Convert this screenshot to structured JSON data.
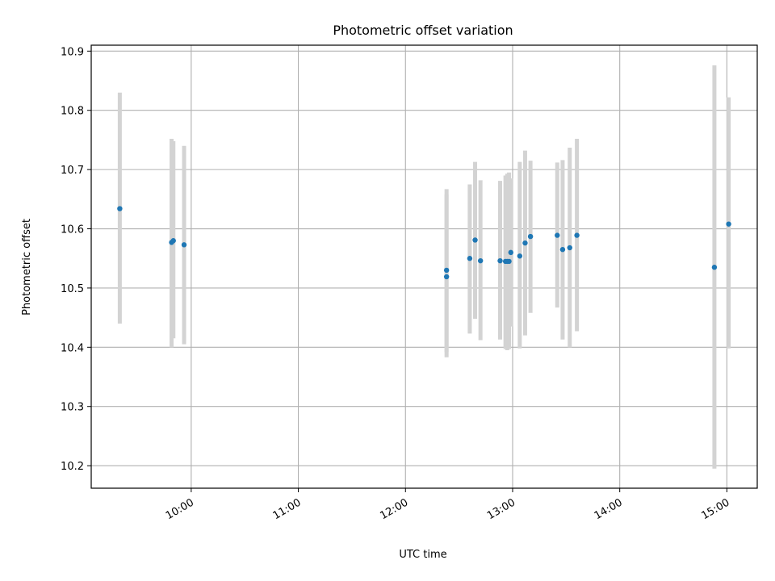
{
  "chart_data": {
    "type": "scatter",
    "title": "Photometric offset variation",
    "xlabel": "UTC time",
    "ylabel": "Photometric offset",
    "x_unit": "UTC time (HH:MM)",
    "xlim": [
      "09:04",
      "15:17"
    ],
    "ylim": [
      10.162,
      10.91
    ],
    "x_ticks": [
      "10:00",
      "11:00",
      "12:00",
      "13:00",
      "14:00",
      "15:00"
    ],
    "y_ticks": [
      "10.2",
      "10.3",
      "10.4",
      "10.5",
      "10.6",
      "10.7",
      "10.8",
      "10.9"
    ],
    "grid": true,
    "colors": {
      "point": "#1f77b4",
      "error_bar": "#d3d3d3"
    },
    "points": [
      {
        "x": "09:20",
        "y": 10.634,
        "err_low": 10.44,
        "err_high": 10.83
      },
      {
        "x": "09:49",
        "y": 10.577,
        "err_low": 10.4,
        "err_high": 10.752
      },
      {
        "x": "09:50",
        "y": 10.58,
        "err_low": 10.415,
        "err_high": 10.748
      },
      {
        "x": "09:56",
        "y": 10.573,
        "err_low": 10.405,
        "err_high": 10.74
      },
      {
        "x": "12:23",
        "y": 10.519,
        "err_low": 10.383,
        "err_high": 10.658
      },
      {
        "x": "12:23",
        "y": 10.53,
        "err_low": 10.392,
        "err_high": 10.667
      },
      {
        "x": "12:36",
        "y": 10.55,
        "err_low": 10.423,
        "err_high": 10.675
      },
      {
        "x": "12:39",
        "y": 10.581,
        "err_low": 10.448,
        "err_high": 10.713
      },
      {
        "x": "12:42",
        "y": 10.546,
        "err_low": 10.412,
        "err_high": 10.682
      },
      {
        "x": "12:53",
        "y": 10.546,
        "err_low": 10.413,
        "err_high": 10.681
      },
      {
        "x": "12:56",
        "y": 10.545,
        "err_low": 10.397,
        "err_high": 10.69
      },
      {
        "x": "12:57",
        "y": 10.545,
        "err_low": 10.395,
        "err_high": 10.693
      },
      {
        "x": "12:58",
        "y": 10.545,
        "err_low": 10.397,
        "err_high": 10.695
      },
      {
        "x": "12:59",
        "y": 10.56,
        "err_low": 10.435,
        "err_high": 10.685
      },
      {
        "x": "13:04",
        "y": 10.554,
        "err_low": 10.398,
        "err_high": 10.713
      },
      {
        "x": "13:07",
        "y": 10.576,
        "err_low": 10.42,
        "err_high": 10.732
      },
      {
        "x": "13:10",
        "y": 10.587,
        "err_low": 10.458,
        "err_high": 10.715
      },
      {
        "x": "13:25",
        "y": 10.589,
        "err_low": 10.467,
        "err_high": 10.712
      },
      {
        "x": "13:28",
        "y": 10.565,
        "err_low": 10.413,
        "err_high": 10.716
      },
      {
        "x": "13:32",
        "y": 10.568,
        "err_low": 10.4,
        "err_high": 10.737
      },
      {
        "x": "13:36",
        "y": 10.589,
        "err_low": 10.427,
        "err_high": 10.752
      },
      {
        "x": "14:53",
        "y": 10.535,
        "err_low": 10.195,
        "err_high": 10.876
      },
      {
        "x": "15:01",
        "y": 10.608,
        "err_low": 10.398,
        "err_high": 10.822
      }
    ]
  }
}
